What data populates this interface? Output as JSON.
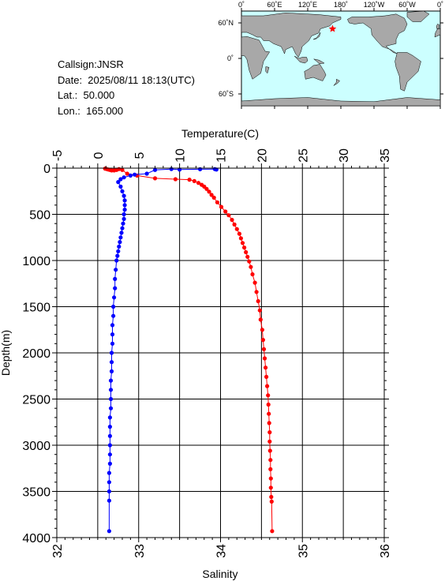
{
  "info": {
    "callsign": "Callsign:JNSR",
    "date": "Date:  2025/08/11 18:13(UTC)",
    "lat": "Lat.:  50.000",
    "lon": "Lon.:  165.000"
  },
  "map": {
    "top_labels": [
      "0˚",
      "60˚E",
      "120˚E",
      "180˚",
      "120˚W",
      "60˚W",
      "0˚"
    ],
    "left_labels": [
      "60˚N",
      "0˚",
      "60˚S"
    ],
    "ocean_color": "#ccffff",
    "land_color": "#a8a8a8",
    "marker_color": "#ff0000",
    "marker_lat": 50.0,
    "marker_lon": 165.0
  },
  "chart_data": {
    "type": "line",
    "ylabel": "Depth(m)",
    "top_axis_label": "Temperature(C)",
    "bottom_axis_label": "Salinity",
    "ylim": [
      4000,
      0
    ],
    "y_ticks": [
      "0",
      "500",
      "1000",
      "1500",
      "2000",
      "2500",
      "3000",
      "3500",
      "4000"
    ],
    "temperature_lim": [
      -5,
      35
    ],
    "temperature_ticks": [
      "-5",
      "0",
      "5",
      "10",
      "15",
      "20",
      "25",
      "30",
      "35"
    ],
    "salinity_lim": [
      32,
      36
    ],
    "salinity_ticks": [
      "32",
      "33",
      "34",
      "35",
      "36"
    ],
    "grid": true,
    "series": [
      {
        "axis": "temperature",
        "color": "#ff0000",
        "points": [
          [
            0.9,
            5
          ],
          [
            1.1,
            10
          ],
          [
            1.3,
            15
          ],
          [
            1.5,
            20
          ],
          [
            1.7,
            25
          ],
          [
            2.0,
            25
          ],
          [
            2.3,
            20
          ],
          [
            2.6,
            10
          ],
          [
            3.0,
            20
          ],
          [
            3.6,
            60
          ],
          [
            4.8,
            80
          ],
          [
            7.0,
            110
          ],
          [
            9.5,
            120
          ],
          [
            11.2,
            125
          ],
          [
            11.8,
            140
          ],
          [
            12.3,
            160
          ],
          [
            12.7,
            180
          ],
          [
            13.0,
            200
          ],
          [
            13.3,
            225
          ],
          [
            13.6,
            255
          ],
          [
            13.9,
            290
          ],
          [
            14.2,
            320
          ],
          [
            14.6,
            370
          ],
          [
            15.1,
            420
          ],
          [
            15.6,
            470
          ],
          [
            16.0,
            510
          ],
          [
            16.4,
            560
          ],
          [
            16.7,
            610
          ],
          [
            17.0,
            660
          ],
          [
            17.3,
            710
          ],
          [
            17.5,
            760
          ],
          [
            17.7,
            810
          ],
          [
            17.9,
            860
          ],
          [
            18.1,
            910
          ],
          [
            18.3,
            960
          ],
          [
            18.5,
            1010
          ],
          [
            18.7,
            1070
          ],
          [
            18.9,
            1150
          ],
          [
            19.2,
            1240
          ],
          [
            19.4,
            1340
          ],
          [
            19.6,
            1440
          ],
          [
            19.8,
            1540
          ],
          [
            19.9,
            1640
          ],
          [
            20.1,
            1750
          ],
          [
            20.2,
            1860
          ],
          [
            20.3,
            1960
          ],
          [
            20.4,
            2060
          ],
          [
            20.5,
            2160
          ],
          [
            20.6,
            2260
          ],
          [
            20.7,
            2360
          ],
          [
            20.8,
            2460
          ],
          [
            20.85,
            2560
          ],
          [
            20.9,
            2660
          ],
          [
            20.95,
            2760
          ],
          [
            21.0,
            2860
          ],
          [
            21.0,
            2960
          ],
          [
            21.05,
            3060
          ],
          [
            21.1,
            3160
          ],
          [
            21.1,
            3260
          ],
          [
            21.15,
            3360
          ],
          [
            21.15,
            3460
          ],
          [
            21.2,
            3560
          ],
          [
            21.25,
            3610
          ],
          [
            21.3,
            3930
          ]
        ]
      },
      {
        "axis": "salinity",
        "color": "#0000ff",
        "points": [
          [
            33.95,
            15
          ],
          [
            33.93,
            10
          ],
          [
            33.75,
            12
          ],
          [
            33.5,
            15
          ],
          [
            33.4,
            10
          ],
          [
            33.2,
            20
          ],
          [
            33.1,
            60
          ],
          [
            32.95,
            70
          ],
          [
            32.9,
            80
          ],
          [
            32.82,
            100
          ],
          [
            32.78,
            120
          ],
          [
            32.75,
            150
          ],
          [
            32.78,
            200
          ],
          [
            32.8,
            250
          ],
          [
            32.82,
            300
          ],
          [
            32.83,
            350
          ],
          [
            32.83,
            400
          ],
          [
            32.83,
            450
          ],
          [
            32.82,
            500
          ],
          [
            32.82,
            550
          ],
          [
            32.81,
            600
          ],
          [
            32.8,
            650
          ],
          [
            32.79,
            700
          ],
          [
            32.78,
            750
          ],
          [
            32.77,
            800
          ],
          [
            32.76,
            850
          ],
          [
            32.75,
            900
          ],
          [
            32.74,
            950
          ],
          [
            32.73,
            1000
          ],
          [
            32.72,
            1100
          ],
          [
            32.71,
            1200
          ],
          [
            32.71,
            1300
          ],
          [
            32.7,
            1400
          ],
          [
            32.69,
            1500
          ],
          [
            32.69,
            1600
          ],
          [
            32.68,
            1700
          ],
          [
            32.68,
            1800
          ],
          [
            32.68,
            1900
          ],
          [
            32.67,
            2000
          ],
          [
            32.67,
            2100
          ],
          [
            32.67,
            2200
          ],
          [
            32.66,
            2300
          ],
          [
            32.66,
            2400
          ],
          [
            32.66,
            2500
          ],
          [
            32.66,
            2600
          ],
          [
            32.65,
            2700
          ],
          [
            32.65,
            2800
          ],
          [
            32.65,
            2900
          ],
          [
            32.65,
            3000
          ],
          [
            32.65,
            3100
          ],
          [
            32.65,
            3200
          ],
          [
            32.64,
            3300
          ],
          [
            32.64,
            3400
          ],
          [
            32.64,
            3500
          ],
          [
            32.64,
            3600
          ],
          [
            32.64,
            3930
          ]
        ]
      }
    ]
  }
}
